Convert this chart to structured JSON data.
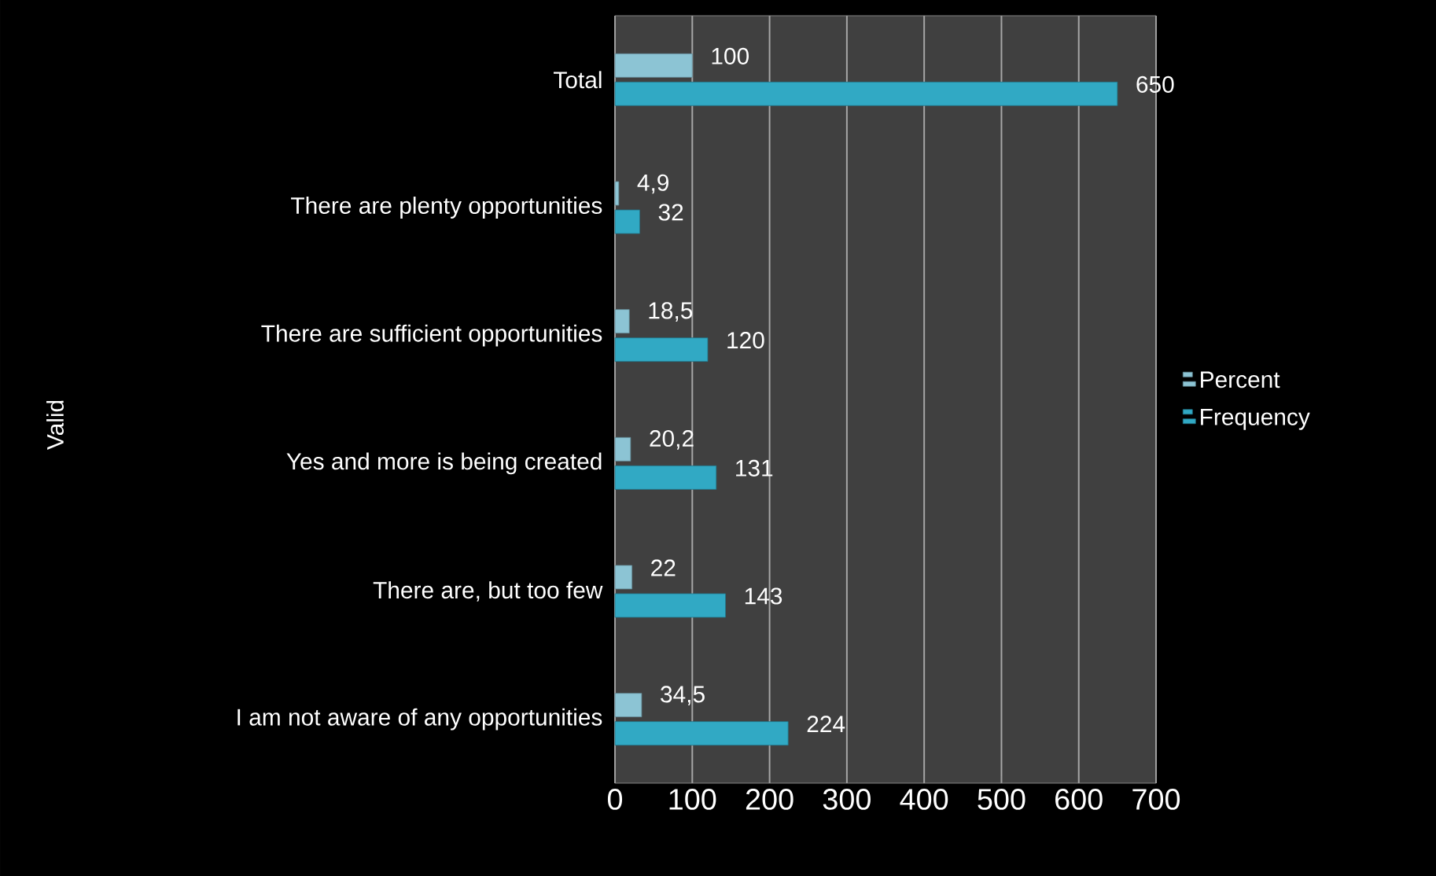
{
  "chart_data": {
    "type": "bar",
    "orientation": "horizontal",
    "annotations": [
      "Valid"
    ],
    "categories": [
      "Total",
      "There are plenty opportunities",
      "There are sufficient opportunities",
      "Yes and more is being created",
      "There are, but too few",
      "I am not aware of any opportunities"
    ],
    "series": [
      {
        "name": "Percent",
        "color": "#8cc4d4",
        "values": [
          100,
          4.9,
          18.5,
          20.2,
          22,
          34.5
        ],
        "value_labels": [
          "100",
          "4,9",
          "18,5",
          "20,2",
          "22",
          "34,5"
        ]
      },
      {
        "name": "Frequency",
        "color": "#31a9c4",
        "values": [
          650,
          32,
          120,
          131,
          143,
          224
        ],
        "value_labels": [
          "650",
          "32",
          "120",
          "131",
          "143",
          "224"
        ]
      }
    ],
    "xlim": [
      0,
      700
    ],
    "xticks": [
      0,
      100,
      200,
      300,
      400,
      500,
      600,
      700
    ],
    "grid": "x",
    "legend": "right"
  }
}
